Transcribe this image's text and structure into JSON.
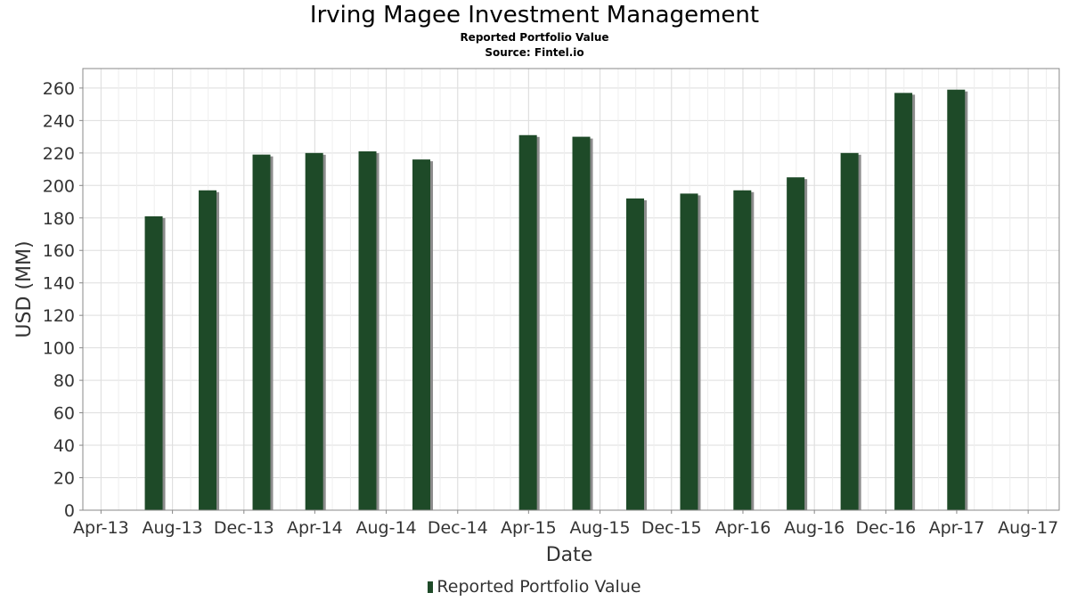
{
  "title": "Irving Magee Investment Management",
  "subtitle": "Reported Portfolio Value",
  "source": "Source: Fintel.io",
  "legend": {
    "label": "Reported Portfolio Value"
  },
  "colors": {
    "bar": "#1e4a28",
    "bar_shadow": "#8c8c8c",
    "grid": "#dddddd",
    "axis": "#888888",
    "tick_text": "#333333"
  },
  "chart_data": {
    "type": "bar",
    "xlabel": "Date",
    "ylabel": "USD (MM)",
    "ylim": [
      0,
      272
    ],
    "yticks": [
      0,
      20,
      40,
      60,
      80,
      100,
      120,
      140,
      160,
      180,
      200,
      220,
      240,
      260
    ],
    "xlim": [
      "2013-03-01",
      "2017-09-23"
    ],
    "xticks": [
      {
        "label": "Apr-13",
        "date": "2013-04-01"
      },
      {
        "label": "Aug-13",
        "date": "2013-08-01"
      },
      {
        "label": "Dec-13",
        "date": "2013-12-01"
      },
      {
        "label": "Apr-14",
        "date": "2014-04-01"
      },
      {
        "label": "Aug-14",
        "date": "2014-08-01"
      },
      {
        "label": "Dec-14",
        "date": "2014-12-01"
      },
      {
        "label": "Apr-15",
        "date": "2015-04-01"
      },
      {
        "label": "Aug-15",
        "date": "2015-08-01"
      },
      {
        "label": "Dec-15",
        "date": "2015-12-01"
      },
      {
        "label": "Apr-16",
        "date": "2016-04-01"
      },
      {
        "label": "Aug-16",
        "date": "2016-08-01"
      },
      {
        "label": "Dec-16",
        "date": "2016-12-01"
      },
      {
        "label": "Apr-17",
        "date": "2017-04-01"
      },
      {
        "label": "Aug-17",
        "date": "2017-08-01"
      }
    ],
    "grid": true,
    "legend_position": "bottom",
    "series": [
      {
        "name": "Reported Portfolio Value",
        "points": [
          {
            "date": "2013-06-30",
            "value": 181
          },
          {
            "date": "2013-09-30",
            "value": 197
          },
          {
            "date": "2013-12-31",
            "value": 219
          },
          {
            "date": "2014-03-31",
            "value": 220
          },
          {
            "date": "2014-06-30",
            "value": 221
          },
          {
            "date": "2014-09-30",
            "value": 216
          },
          {
            "date": "2015-03-31",
            "value": 231
          },
          {
            "date": "2015-06-30",
            "value": 230
          },
          {
            "date": "2015-09-30",
            "value": 192
          },
          {
            "date": "2015-12-31",
            "value": 195
          },
          {
            "date": "2016-03-31",
            "value": 197
          },
          {
            "date": "2016-06-30",
            "value": 205
          },
          {
            "date": "2016-09-30",
            "value": 220
          },
          {
            "date": "2016-12-31",
            "value": 257
          },
          {
            "date": "2017-03-31",
            "value": 259
          }
        ]
      }
    ]
  }
}
